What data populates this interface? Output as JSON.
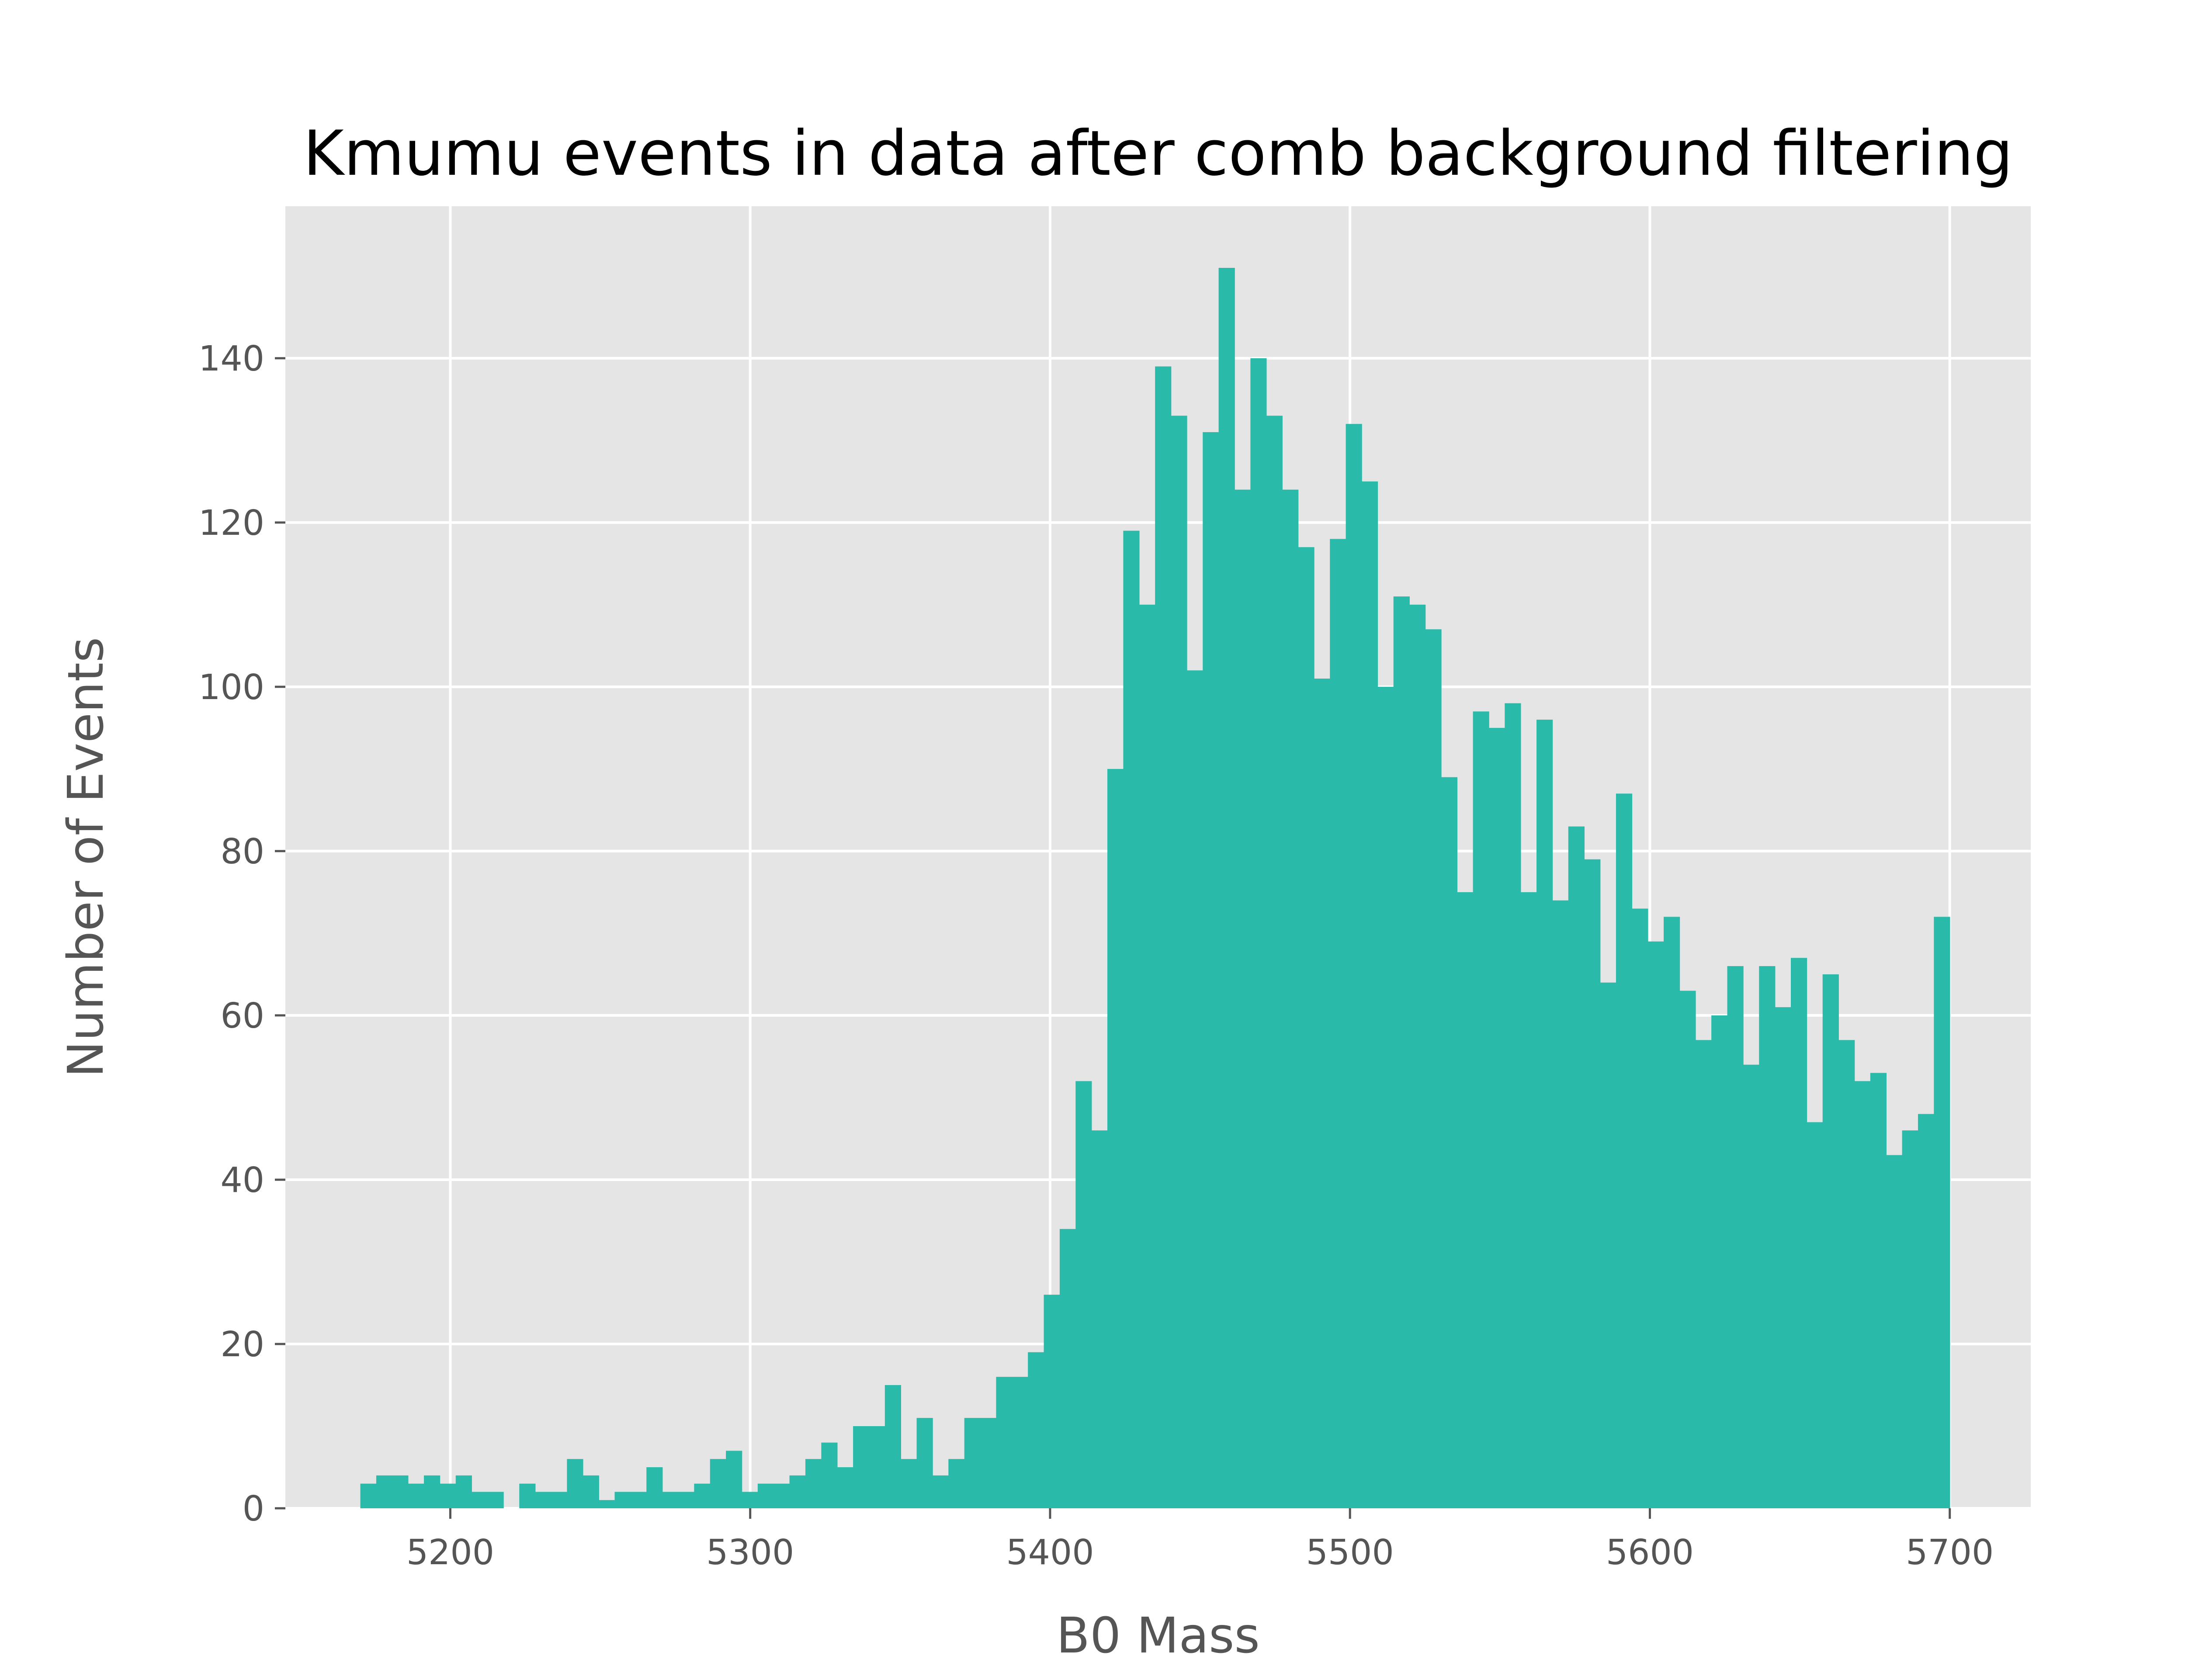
{
  "chart_data": {
    "type": "bar",
    "title": "Kmumu events in data after comb background filtering",
    "xlabel": "B0 Mass",
    "ylabel": "Number of Events",
    "xlim": [
      5145,
      5727
    ],
    "ylim": [
      0,
      158.5
    ],
    "x_ticks": [
      5200,
      5300,
      5400,
      5500,
      5600,
      5700
    ],
    "y_ticks": [
      0,
      20,
      40,
      60,
      80,
      100,
      120,
      140
    ],
    "grid": true,
    "legend": "none",
    "colors": {
      "bar": "#2abaaa",
      "plot_background": "#e5e5e5",
      "grid": "#ffffff",
      "tick_text": "#555555",
      "title_text": "#000000"
    },
    "bin_start": 5170,
    "bin_width": 5.3,
    "values": [
      3,
      4,
      4,
      3,
      4,
      3,
      4,
      2,
      2,
      0,
      3,
      2,
      2,
      6,
      4,
      1,
      2,
      2,
      5,
      2,
      2,
      3,
      6,
      7,
      2,
      3,
      3,
      4,
      6,
      8,
      5,
      10,
      10,
      15,
      6,
      11,
      4,
      6,
      11,
      11,
      16,
      16,
      19,
      26,
      34,
      52,
      46,
      90,
      119,
      110,
      139,
      133,
      102,
      131,
      151,
      124,
      140,
      133,
      124,
      117,
      101,
      118,
      132,
      125,
      100,
      111,
      110,
      107,
      89,
      75,
      97,
      95,
      98,
      75,
      96,
      74,
      83,
      79,
      64,
      87,
      73,
      69,
      72,
      63,
      57,
      60,
      66,
      54,
      66,
      61,
      67,
      47,
      65,
      57,
      52,
      53,
      43,
      46,
      48,
      72
    ]
  }
}
